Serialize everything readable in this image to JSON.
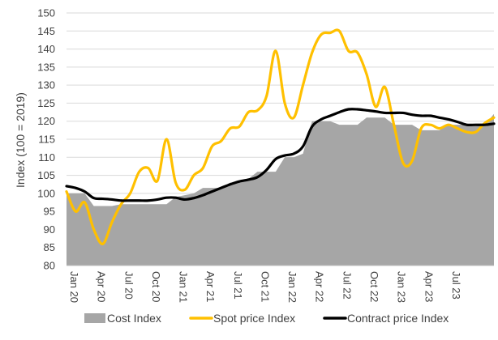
{
  "chart_data": {
    "type": "area",
    "title": "",
    "xlabel": "",
    "ylabel": "Index (100 = 2019)",
    "ylim": [
      80,
      150
    ],
    "yticks": [
      80,
      85,
      90,
      95,
      100,
      105,
      110,
      115,
      120,
      125,
      130,
      135,
      140,
      145,
      150
    ],
    "grid": true,
    "legend_position": "bottom",
    "x_range": [
      0,
      47
    ],
    "xtick_labels": [
      {
        "label": "Jan 20",
        "x": 0
      },
      {
        "label": "Apr 20",
        "x": 3
      },
      {
        "label": "Jul 20",
        "x": 6
      },
      {
        "label": "Oct 20",
        "x": 9
      },
      {
        "label": "Jan 21",
        "x": 12
      },
      {
        "label": "Apr 21",
        "x": 15
      },
      {
        "label": "Jul 21",
        "x": 18
      },
      {
        "label": "Oct 21",
        "x": 21
      },
      {
        "label": "Jan 22",
        "x": 24
      },
      {
        "label": "Apr 22",
        "x": 27
      },
      {
        "label": "Jul 22",
        "x": 30
      },
      {
        "label": "Oct 22",
        "x": 33
      },
      {
        "label": "Jan 23",
        "x": 36
      },
      {
        "label": "Apr 23",
        "x": 39
      },
      {
        "label": "Jul 23",
        "x": 42
      }
    ],
    "series": [
      {
        "name": "Cost Index",
        "kind": "area",
        "color": "#a6a6a6",
        "values": [
          100,
          100,
          100,
          96.5,
          96.5,
          96.5,
          97,
          97,
          97,
          97,
          97,
          97,
          99,
          99.5,
          100,
          101.5,
          101.5,
          101.5,
          103,
          103,
          104,
          106,
          106,
          106,
          110,
          110,
          111,
          120,
          120,
          120,
          119,
          119,
          119,
          121,
          121,
          121,
          119,
          119,
          119,
          117.5,
          117.5,
          117.5,
          119,
          119,
          119,
          119,
          119,
          122
        ]
      },
      {
        "name": "Spot price Index",
        "kind": "line",
        "color": "#ffc000",
        "values": [
          100.5,
          95,
          97.5,
          90,
          86,
          92,
          97,
          100,
          106,
          107,
          103.5,
          115,
          103,
          101,
          105,
          107,
          113,
          114.5,
          118,
          118.5,
          122.5,
          123,
          127,
          139.5,
          125,
          121,
          130,
          139,
          144,
          144.5,
          145,
          139.5,
          139,
          133,
          124,
          129.5,
          119,
          108.5,
          109,
          118,
          119,
          118,
          119,
          118,
          117,
          117,
          119.5,
          121
        ]
      },
      {
        "name": "Contract price Index",
        "kind": "line",
        "color": "#000000",
        "values": [
          102,
          101.5,
          100.5,
          98.7,
          98.5,
          98.3,
          98,
          98,
          98,
          98,
          98.3,
          98.8,
          98.8,
          98.3,
          98.7,
          99.5,
          100.5,
          101.5,
          102.5,
          103.3,
          103.8,
          104.5,
          106.5,
          109.5,
          110.5,
          111,
          113,
          118.5,
          120.5,
          121.5,
          122.5,
          123.3,
          123.3,
          123,
          122.7,
          122.3,
          122.3,
          122.3,
          121.8,
          121.5,
          121.5,
          121,
          120.5,
          119.8,
          119,
          119,
          119,
          119.3
        ]
      }
    ],
    "legend": [
      "Cost Index",
      "Spot price Index",
      "Contract price Index"
    ]
  }
}
